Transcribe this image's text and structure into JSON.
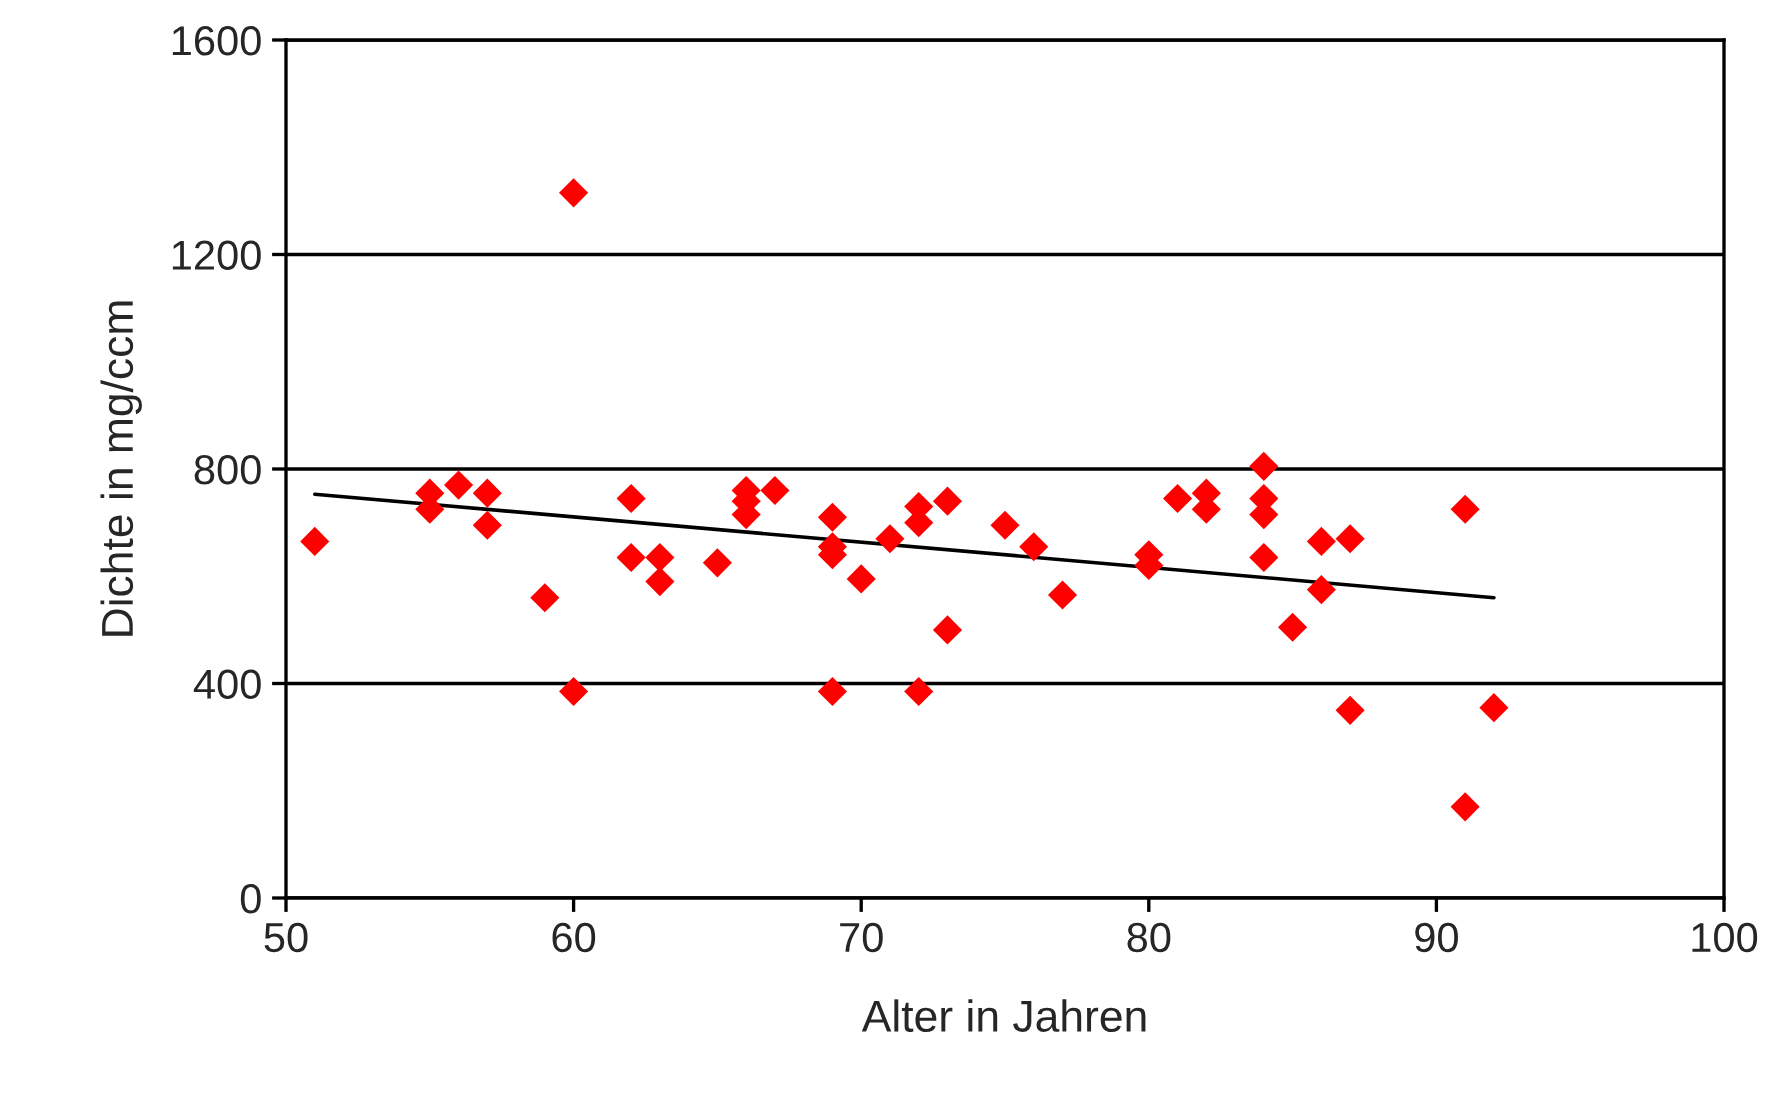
{
  "chart_data": {
    "type": "scatter",
    "xlabel": "Alter in Jahren",
    "ylabel": "Dichte in mg/ccm",
    "xlim": [
      50,
      100
    ],
    "xticks": [
      50,
      60,
      70,
      80,
      90,
      100
    ],
    "ylim": [
      0,
      1600
    ],
    "yticks": [
      0,
      400,
      800,
      1200,
      1600
    ],
    "grid": "y",
    "legend": false,
    "series": [
      {
        "color": "#ff0000",
        "marker": "diamond",
        "x": [
          51,
          55,
          55,
          56,
          57,
          57,
          59,
          60,
          60,
          62,
          62,
          63,
          63,
          65,
          66,
          66,
          66,
          67,
          69,
          69,
          69,
          69,
          70,
          71,
          72,
          72,
          72,
          73,
          73,
          75,
          76,
          77,
          80,
          80,
          81,
          82,
          82,
          84,
          84,
          84,
          84,
          85,
          86,
          86,
          87,
          87,
          91,
          91,
          92
        ],
        "values": [
          665,
          755,
          725,
          770,
          755,
          695,
          560,
          1315,
          385,
          745,
          635,
          635,
          590,
          625,
          760,
          740,
          715,
          760,
          710,
          655,
          640,
          385,
          595,
          670,
          730,
          700,
          385,
          740,
          500,
          695,
          655,
          565,
          640,
          620,
          745,
          755,
          725,
          805,
          745,
          715,
          635,
          505,
          665,
          575,
          670,
          350,
          725,
          170,
          355
        ]
      },
      {
        "type": "line",
        "color": "#000000",
        "marker": "none",
        "x": [
          51,
          92
        ],
        "values": [
          753,
          560
        ]
      }
    ]
  }
}
